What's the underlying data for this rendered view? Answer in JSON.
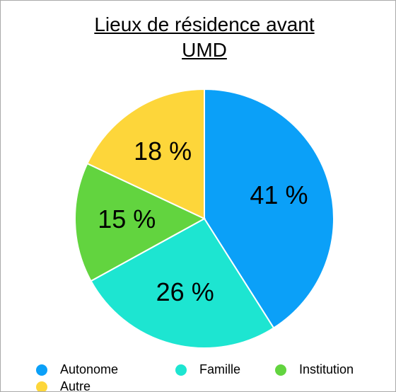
{
  "chart_data": {
    "type": "pie",
    "title": "Lieux de résidence avant UMD",
    "categories": [
      "Autonome",
      "Famille",
      "Institution",
      "Autre"
    ],
    "values": [
      41,
      26,
      15,
      18
    ],
    "value_labels": [
      "41 %",
      "26 %",
      "15 %",
      "18 %"
    ],
    "colors": [
      "#0ba0f8",
      "#1de5d1",
      "#62d43f",
      "#fdd63a"
    ],
    "legend": "bottom"
  }
}
